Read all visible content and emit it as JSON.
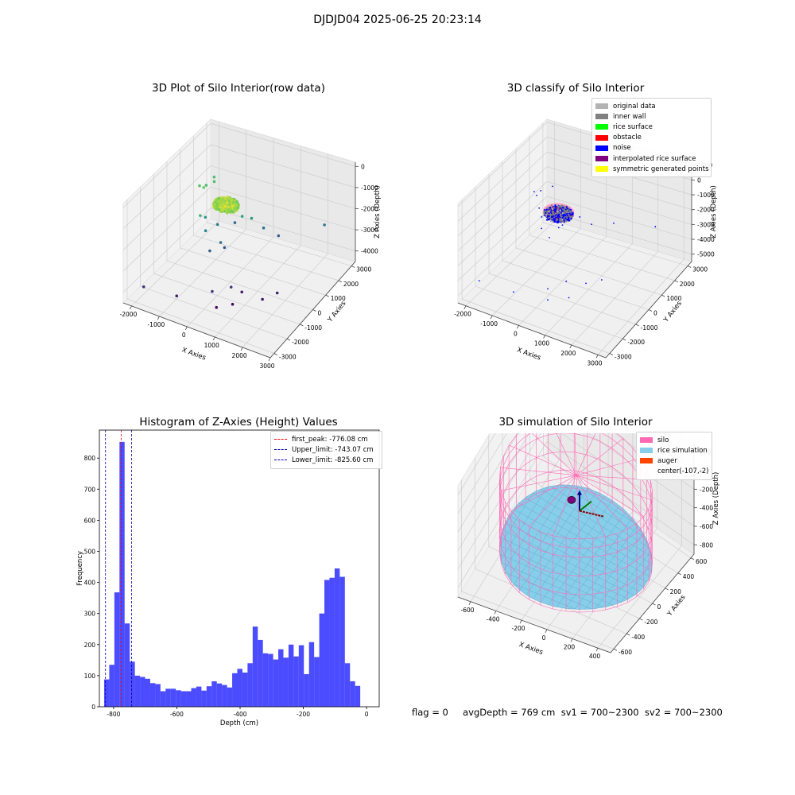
{
  "suptitle": "DJDJD04 2025-06-25 20:23:14",
  "footer": "flag = 0     avgDepth = 769 cm  sv1 = 700~2300  sv2 = 700~2300",
  "chart_data": [
    {
      "id": "raw",
      "type": "scatter",
      "title": "3D Plot of Silo Interior(row data)",
      "xlabel": "X Axies",
      "ylabel": "Y Axies",
      "zlabel": "Z Axies (Depth)",
      "xlim": [
        -2300,
        3000
      ],
      "ylim": [
        -3300,
        3300
      ],
      "zlim": [
        -4500,
        200
      ],
      "xticks": [
        -2000,
        -1000,
        0,
        1000,
        2000,
        3000
      ],
      "yticks": [
        -3000,
        -2000,
        -1000,
        0,
        1000,
        2000,
        3000
      ],
      "zticks": [
        -4000,
        -3000,
        -2000,
        -1000,
        0
      ],
      "grid": true,
      "cluster": {
        "center": [
          -150,
          0,
          -950
        ],
        "radius": 420,
        "depth_spread": 160,
        "count": 600
      },
      "points": [
        [
          -1500,
          800,
          -1100
        ],
        [
          -1450,
          1200,
          -1300
        ],
        [
          -1300,
          1500,
          -1250
        ],
        [
          -1250,
          600,
          -950
        ],
        [
          -1400,
          1700,
          -1200
        ],
        [
          -1000,
          200,
          -2000
        ],
        [
          -800,
          -200,
          -2300
        ],
        [
          -700,
          500,
          -2400
        ],
        [
          -500,
          1400,
          -2800
        ],
        [
          -600,
          -300,
          -3100
        ],
        [
          -400,
          400,
          -3300
        ],
        [
          -300,
          -100,
          -2700
        ],
        [
          -700,
          1100,
          -1800
        ],
        [
          -900,
          -400,
          -1500
        ],
        [
          100,
          700,
          -1800
        ],
        [
          300,
          1000,
          -2000
        ],
        [
          500,
          1500,
          -2700
        ],
        [
          900,
          1800,
          -3100
        ],
        [
          2200,
          2600,
          -2600
        ],
        [
          -1800,
          -2800,
          -3800
        ],
        [
          -800,
          -2400,
          -4000
        ],
        [
          200,
          -1800,
          -3700
        ],
        [
          600,
          -1200,
          -3700
        ],
        [
          800,
          -800,
          -4100
        ],
        [
          1500,
          -700,
          -4200
        ],
        [
          1800,
          -200,
          -4100
        ],
        [
          400,
          -1900,
          -4300
        ],
        [
          700,
          -1300,
          -4400
        ]
      ]
    },
    {
      "id": "classify",
      "type": "scatter",
      "title": "3D classify of Silo Interior",
      "xlabel": "X Axies",
      "ylabel": "Y Axies",
      "zlabel": "Z Axies (Depth)",
      "xlim": [
        -2300,
        3300
      ],
      "ylim": [
        -3300,
        3300
      ],
      "zlim": [
        -5500,
        1200
      ],
      "xticks": [
        -2000,
        -1000,
        0,
        1000,
        2000,
        3000
      ],
      "yticks": [
        -3000,
        -2000,
        -1000,
        0,
        1000,
        2000,
        3000
      ],
      "zticks": [
        -5000,
        -4000,
        -3000,
        -2000,
        -1000,
        0,
        1000
      ],
      "grid": true,
      "legend_position": "upper-right",
      "legend": [
        {
          "label": "original data",
          "color": "#b3b3b3"
        },
        {
          "label": "inner wall",
          "color": "#808080"
        },
        {
          "label": "rice surface",
          "color": "#00ff00"
        },
        {
          "label": "obstacle",
          "color": "#ff0000"
        },
        {
          "label": "noise",
          "color": "#0000ff"
        },
        {
          "label": "interpolated rice surface",
          "color": "#800080"
        },
        {
          "label": "symmetric generated points",
          "color": "#ffff00"
        }
      ],
      "cluster": {
        "center": [
          -150,
          0,
          -1100
        ],
        "radius": 500,
        "depth_spread": 220,
        "count": 700
      },
      "points": [
        [
          -1600,
          1000,
          -1300
        ],
        [
          -1500,
          1300,
          -1450
        ],
        [
          -1350,
          700,
          -1150
        ],
        [
          -1200,
          1600,
          -1250
        ],
        [
          -1100,
          400,
          -1600
        ],
        [
          -900,
          200,
          -1900
        ],
        [
          -700,
          -200,
          -2200
        ],
        [
          -400,
          500,
          -2600
        ],
        [
          -300,
          -400,
          -2400
        ],
        [
          200,
          900,
          -1900
        ],
        [
          500,
          1200,
          -2500
        ],
        [
          1000,
          1900,
          -2800
        ],
        [
          2300,
          2500,
          -2900
        ],
        [
          -1800,
          -2700,
          -4200
        ],
        [
          -700,
          -2300,
          -4600
        ],
        [
          300,
          -1700,
          -4300
        ],
        [
          700,
          -1100,
          -4100
        ],
        [
          1200,
          -600,
          -4400
        ],
        [
          1600,
          -200,
          -4300
        ],
        [
          400,
          -1900,
          -4800
        ],
        [
          900,
          -1300,
          -4900
        ],
        [
          -200,
          300,
          -1300
        ],
        [
          100,
          -200,
          -1500
        ]
      ]
    },
    {
      "id": "hist",
      "type": "bar",
      "title": "Histogram of Z-Axies (Height) Values",
      "xlabel": "Depth (cm)",
      "ylabel": "Frequency",
      "xlim": [
        -845,
        40
      ],
      "ylim": [
        0,
        890
      ],
      "xticks": [
        -800,
        -600,
        -400,
        -200,
        0
      ],
      "yticks": [
        0,
        100,
        200,
        300,
        400,
        500,
        600,
        700,
        800
      ],
      "bin_start": -830,
      "bin_width": 16.2,
      "values": [
        88,
        135,
        368,
        852,
        268,
        145,
        100,
        96,
        90,
        76,
        73,
        50,
        58,
        58,
        53,
        50,
        50,
        60,
        65,
        52,
        66,
        82,
        75,
        70,
        62,
        108,
        122,
        110,
        140,
        258,
        215,
        172,
        170,
        152,
        185,
        158,
        200,
        162,
        198,
        105,
        208,
        160,
        300,
        408,
        415,
        445,
        418,
        140,
        82,
        67
      ],
      "bar_color": "#0000ff",
      "lines": [
        {
          "label": "first_peak: -776.08 cm",
          "x": -776.08,
          "color": "#ff0000"
        },
        {
          "label": "Upper_limit: -743.07 cm",
          "x": -743.07,
          "color": "#0000aa"
        },
        {
          "label": "Lower_limit: -825.60 cm",
          "x": -825.6,
          "color": "#0000aa"
        }
      ],
      "legend_position": "upper-right"
    },
    {
      "id": "sim",
      "type": "surface",
      "title": "3D simulation of Silo Interior",
      "xlabel": "X Axies",
      "ylabel": "Y Axies",
      "zlabel": "Z Axies (Depth)",
      "xlim": [
        -700,
        500
      ],
      "ylim": [
        -650,
        650
      ],
      "zlim": [
        -900,
        300
      ],
      "xticks": [
        -600,
        -400,
        -200,
        0,
        200,
        400
      ],
      "yticks": [
        -600,
        -400,
        -200,
        0,
        200,
        400,
        600
      ],
      "zticks": [
        -800,
        -600,
        -400,
        -200,
        0,
        200
      ],
      "grid": true,
      "silo": {
        "center": [
          -107,
          -2
        ],
        "radius": 540,
        "top": -10,
        "bottom": -800
      },
      "rice_depth": -769,
      "legend_position": "upper-right",
      "legend": [
        {
          "label": "silo",
          "color": "#ff69b4"
        },
        {
          "label": "rice simulation",
          "color": "#87ceeb"
        },
        {
          "label": "auger",
          "color": "#ff4500"
        },
        {
          "label": "center(-107,-2)",
          "color": ""
        }
      ]
    }
  ]
}
